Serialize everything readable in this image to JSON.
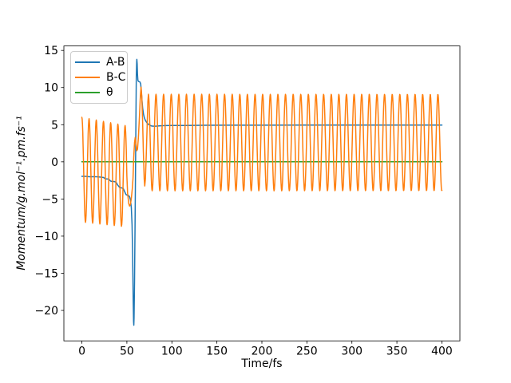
{
  "figure": {
    "background": "#ffffff",
    "frame_color": "#000000"
  },
  "chart_data": {
    "type": "line",
    "title": "",
    "xlabel": "Time/fs",
    "ylabel": "Momentum/g.mol⁻¹.pm.fs⁻¹",
    "xlim": [
      -20,
      420
    ],
    "ylim": [
      -24.1,
      15.6
    ],
    "xticks": [
      0,
      50,
      100,
      150,
      200,
      250,
      300,
      350,
      400
    ],
    "yticks": [
      -20,
      -15,
      -10,
      -5,
      0,
      5,
      10,
      15
    ],
    "grid": false,
    "legend": {
      "position": "upper left",
      "entries": [
        {
          "label": "A-B",
          "color": "#1f77b4"
        },
        {
          "label": "B-C",
          "color": "#ff7f0e"
        },
        {
          "label": "θ",
          "color": "#2ca02c"
        }
      ]
    },
    "draw_order": [
      "A-B",
      "θ",
      "B-C"
    ],
    "series": [
      {
        "name": "A-B",
        "color": "#1f77b4",
        "description": "starts near -2, steps down to -4.5, sharp minimum -22 at t≈57.5, sharp maximum 13.8 at t≈61, shoulder ≈10.8 until t≈65, decays and settles at ≈4.95",
        "points": [
          [
            0,
            -1.95
          ],
          [
            4,
            -1.95
          ],
          [
            8,
            -2.0
          ],
          [
            12,
            -2.0
          ],
          [
            16,
            -2.0
          ],
          [
            20,
            -2.05
          ],
          [
            24,
            -2.1
          ],
          [
            26,
            -2.3
          ],
          [
            28,
            -2.3
          ],
          [
            30,
            -2.35
          ],
          [
            32,
            -2.6
          ],
          [
            34,
            -2.65
          ],
          [
            36,
            -2.65
          ],
          [
            38,
            -2.75
          ],
          [
            40,
            -3.15
          ],
          [
            42,
            -3.45
          ],
          [
            44,
            -3.5
          ],
          [
            46,
            -3.6
          ],
          [
            47.5,
            -4.0
          ],
          [
            49,
            -4.4
          ],
          [
            50.5,
            -4.5
          ],
          [
            52,
            -4.55
          ],
          [
            53,
            -4.7
          ],
          [
            54,
            -5.1
          ],
          [
            55,
            -6.2
          ],
          [
            55.8,
            -8.5
          ],
          [
            56.4,
            -12.5
          ],
          [
            57,
            -18.5
          ],
          [
            57.4,
            -21.5
          ],
          [
            57.7,
            -22.0
          ],
          [
            58,
            -21.0
          ],
          [
            58.5,
            -16.0
          ],
          [
            59,
            -9.0
          ],
          [
            59.6,
            -1.5
          ],
          [
            60.1,
            6.5
          ],
          [
            60.5,
            11.5
          ],
          [
            60.9,
            13.5
          ],
          [
            61.1,
            13.8
          ],
          [
            61.4,
            13.2
          ],
          [
            61.8,
            11.8
          ],
          [
            62.2,
            11.0
          ],
          [
            62.7,
            10.85
          ],
          [
            63.5,
            10.8
          ],
          [
            64.5,
            10.75
          ],
          [
            65.3,
            10.5
          ],
          [
            66,
            9.6
          ],
          [
            66.8,
            8.3
          ],
          [
            67.6,
            7.2
          ],
          [
            68.5,
            6.4
          ],
          [
            69.5,
            5.9
          ],
          [
            70.5,
            5.6
          ],
          [
            72,
            5.3
          ],
          [
            73.5,
            5.1
          ],
          [
            75,
            4.95
          ],
          [
            77,
            4.85
          ],
          [
            79,
            4.8
          ],
          [
            82,
            4.8
          ],
          [
            86,
            4.85
          ],
          [
            92,
            4.88
          ],
          [
            100,
            4.9
          ],
          [
            115,
            4.9
          ],
          [
            135,
            4.92
          ],
          [
            160,
            4.93
          ],
          [
            200,
            4.93
          ],
          [
            250,
            4.94
          ],
          [
            300,
            4.95
          ],
          [
            350,
            4.95
          ],
          [
            400,
            4.95
          ]
        ]
      },
      {
        "name": "B-C",
        "color": "#ff7f0e",
        "description": "oscillates ≈+6 to -8 (period ≈8 fs) until t≈50, transition with peak 10.05 at t≈66, then steady oscillation +9.1 to -3.9 (period ≈8.47 fs) to t=400",
        "segments": [
          {
            "kind": "cosine",
            "t0": 0,
            "t1": 50,
            "period": 8.0,
            "phase_peak_at": 0,
            "peak_start": 6.0,
            "peak_end": 4.85,
            "min_start": -8.1,
            "min_end": -8.75
          },
          {
            "kind": "points",
            "points": [
              [
                50.8,
                -4.2
              ],
              [
                52,
                -5.6
              ],
              [
                53,
                -5.95
              ],
              [
                54,
                -5.7
              ],
              [
                55,
                -4.9
              ],
              [
                56,
                -3.6
              ],
              [
                56.8,
                -2.2
              ],
              [
                57.6,
                0.6
              ],
              [
                58.5,
                2.6
              ],
              [
                59.3,
                3.3
              ],
              [
                60.2,
                2.3
              ],
              [
                61,
                1.5
              ],
              [
                61.8,
                1.7
              ],
              [
                62.8,
                3.2
              ],
              [
                64,
                6.2
              ],
              [
                65,
                8.9
              ],
              [
                65.8,
                10.05
              ],
              [
                66.6,
                8.8
              ],
              [
                67.5,
                5.5
              ],
              [
                68.3,
                1.5
              ],
              [
                69.2,
                -2.3
              ],
              [
                69.9,
                -3.25
              ],
              [
                70.6,
                -2.3
              ],
              [
                71.5,
                0.6
              ],
              [
                72.5,
                4.9
              ],
              [
                73.3,
                8.1
              ]
            ]
          },
          {
            "kind": "cosine",
            "t0": 73.9,
            "t1": 400,
            "period": 8.465,
            "phase_peak_at": 73.9,
            "peak_start": 9.1,
            "peak_end": 9.1,
            "min_start": -3.9,
            "min_end": -3.9
          }
        ]
      },
      {
        "name": "θ",
        "color": "#2ca02c",
        "description": "constant zero line",
        "points": [
          [
            0,
            0
          ],
          [
            400,
            0
          ]
        ]
      }
    ]
  }
}
